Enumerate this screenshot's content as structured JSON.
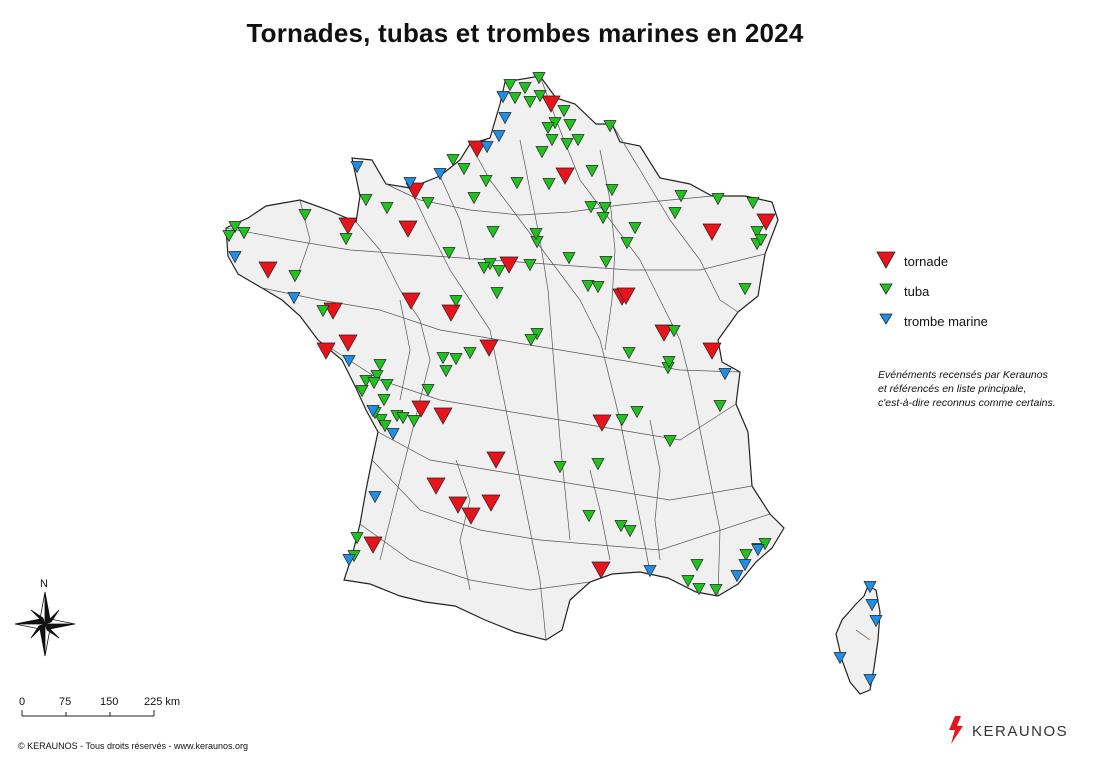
{
  "title": "Tornades, tubas et trombes marines en 2024",
  "legend": {
    "items": [
      {
        "type": "tornado",
        "label": "tornade",
        "color": "#e8141b"
      },
      {
        "type": "tuba",
        "label": "tuba",
        "color": "#21c21f"
      },
      {
        "type": "waterspout",
        "label": "trombe marine",
        "color": "#1f8ee6"
      }
    ]
  },
  "note": {
    "line1": "Evénéments recensés par Keraunos",
    "line2": "et référencés en liste principale,",
    "line3": "c'est-à-dire reconnus comme certains."
  },
  "scale": {
    "ticks": [
      "0",
      "75",
      "150",
      "225 km"
    ]
  },
  "north": {
    "label": "N",
    "icon": "compass-rose-icon"
  },
  "copyright": "© KERAUNOS - Tous droits réservés - www.keraunos.org",
  "brand": {
    "name": "KERAUNOS",
    "icon": "lightning-bolt-icon",
    "color": "#e8141b"
  },
  "colors": {
    "land": "#f0f0f0",
    "border": "#222222",
    "tornado": "#e8141b",
    "tuba": "#21c21f",
    "waterspout": "#1f8ee6"
  }
}
